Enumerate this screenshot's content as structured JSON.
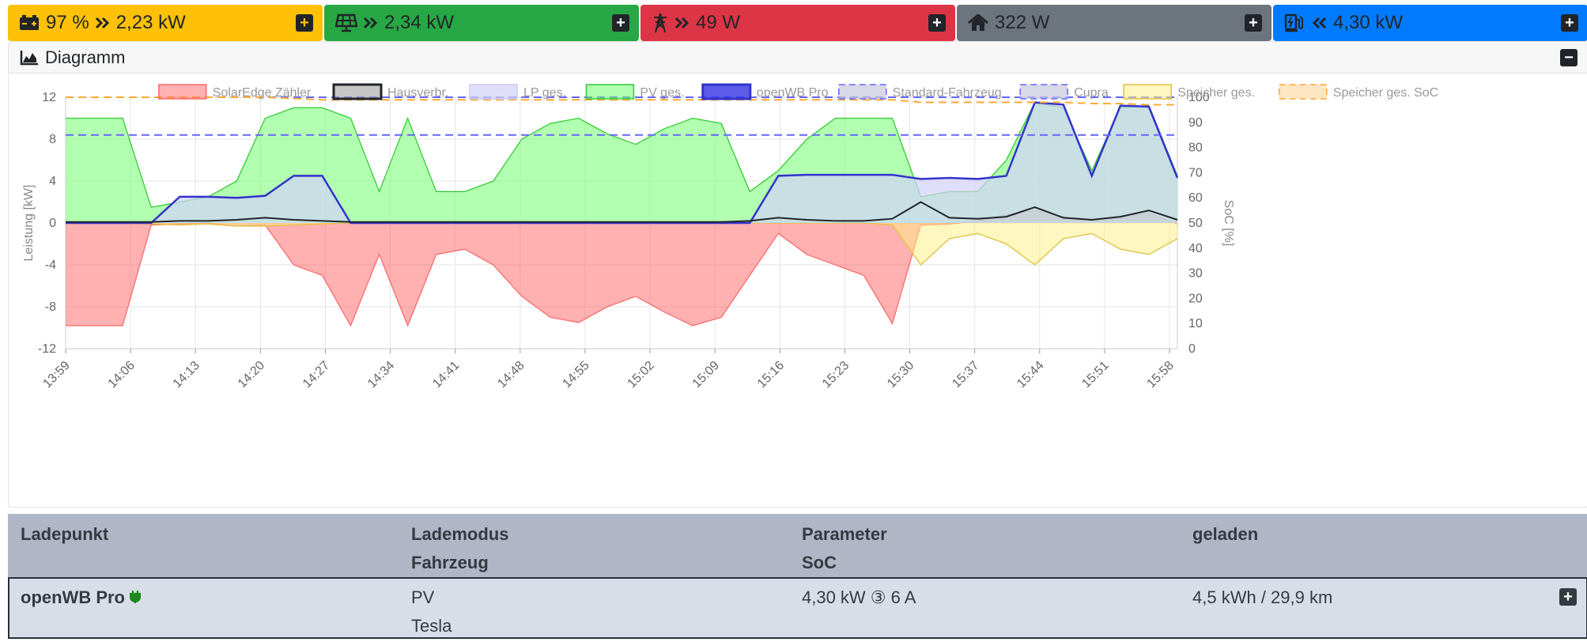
{
  "status": {
    "battery": {
      "soc": "97 %",
      "power": "2,23 kW",
      "icon": "battery-icon",
      "color": "#ffc107"
    },
    "pv": {
      "power": "2,34 kW",
      "icon": "solar-panel-icon",
      "color": "#28a745"
    },
    "grid": {
      "power": "49 W",
      "icon": "power-tower-icon",
      "color": "#dc3545"
    },
    "house": {
      "power": "322 W",
      "icon": "home-icon",
      "color": "#6c757d"
    },
    "chargepoints": {
      "power": "4,30 kW",
      "icon": "charging-station-icon",
      "color": "#007bff"
    }
  },
  "diagram": {
    "title": "Diagramm",
    "icon": "area-chart-icon"
  },
  "chart_data": {
    "type": "area",
    "title": "",
    "xlabel": "",
    "ylabel": "Leistung [kW]",
    "y2label": "SoC [%]",
    "ylim": [
      -12,
      12
    ],
    "y2lim": [
      0,
      100
    ],
    "yticks": [
      12,
      8,
      4,
      0,
      -4,
      -8,
      -12
    ],
    "y2ticks": [
      100,
      90,
      80,
      70,
      60,
      50,
      40,
      30,
      20,
      10,
      0
    ],
    "xticks": [
      "13:59",
      "14:06",
      "14:13",
      "14:20",
      "14:27",
      "14:34",
      "14:41",
      "14:48",
      "14:55",
      "15:02",
      "15:09",
      "15:16",
      "15:23",
      "15:30",
      "15:37",
      "15:44",
      "15:51",
      "15:58"
    ],
    "grid": true,
    "legend_position": "top",
    "x": [
      "13:59",
      "14:03",
      "14:07",
      "14:10",
      "14:13",
      "14:16",
      "14:19",
      "14:22",
      "14:24",
      "14:26",
      "14:30",
      "14:33",
      "14:36",
      "14:40",
      "14:44",
      "14:47",
      "14:50",
      "14:53",
      "14:56",
      "14:59",
      "15:02",
      "15:05",
      "15:08",
      "15:11",
      "15:14",
      "15:17",
      "15:20",
      "15:23",
      "15:26",
      "15:29",
      "15:31",
      "15:34",
      "15:37",
      "15:40",
      "15:43",
      "15:46",
      "15:49",
      "15:52",
      "15:55",
      "15:58"
    ],
    "series": [
      {
        "name": "SolarEdge Zähler",
        "kind": "area",
        "color": "#ff6b6b",
        "fill": "rgba(255,99,99,0.5)",
        "values": [
          -9.8,
          -9.8,
          -9.8,
          -0.2,
          -0.1,
          0,
          -0.3,
          -0.2,
          -4,
          -5,
          -9.8,
          -3,
          -9.8,
          -3,
          -2.5,
          -4,
          -7,
          -9,
          -9.5,
          -8,
          -7,
          -8.5,
          -9.8,
          -9,
          -5,
          -1,
          -3,
          -4,
          -5,
          -9.6,
          -0.2,
          -0.1,
          0.2,
          0.8,
          1.2,
          0.6,
          0.3,
          0.5,
          1,
          -0.1
        ]
      },
      {
        "name": "Hausverbr.",
        "kind": "line",
        "color": "#212529",
        "fill": "rgba(160,160,160,0.6)",
        "values": [
          0.1,
          0.1,
          0.1,
          0.1,
          0.2,
          0.2,
          0.3,
          0.5,
          0.3,
          0.2,
          0.1,
          0.1,
          0.1,
          0.1,
          0.1,
          0.1,
          0.1,
          0.1,
          0.1,
          0.1,
          0.1,
          0.1,
          0.1,
          0.1,
          0.2,
          0.5,
          0.3,
          0.2,
          0.2,
          0.4,
          2,
          0.5,
          0.4,
          0.6,
          1.5,
          0.5,
          0.3,
          0.6,
          1.2,
          0.3
        ]
      },
      {
        "name": "LP ges.",
        "kind": "area",
        "color": "#c9c9f0",
        "fill": "rgba(210,210,250,0.7)",
        "values": [
          0,
          0,
          0,
          0,
          2.5,
          2.5,
          2.4,
          2.6,
          4.5,
          4.5,
          0,
          0,
          0,
          0,
          0,
          0,
          0,
          0,
          0,
          0,
          0,
          0,
          0,
          0,
          0,
          4.5,
          4.6,
          4.6,
          4.6,
          4.6,
          4.2,
          4.3,
          4.2,
          4.5,
          11.5,
          11.3,
          4.5,
          11.2,
          11.1,
          4.3
        ]
      },
      {
        "name": "PV ges.",
        "kind": "area",
        "color": "#33cc33",
        "fill": "rgba(102,255,102,0.5)",
        "values": [
          10,
          10,
          10,
          1.5,
          2,
          2.5,
          4,
          10,
          11,
          11,
          10,
          3,
          10,
          3,
          3,
          4,
          8,
          9.5,
          10,
          8.5,
          7.5,
          9,
          10,
          9.5,
          3,
          5,
          8,
          10,
          10,
          10,
          2.5,
          3,
          3,
          6,
          11.5,
          11,
          5,
          11,
          11.2,
          4.5
        ]
      },
      {
        "name": "openWB Pro",
        "kind": "line",
        "color": "#3333cc",
        "fill": "rgba(51,51,230,0.8)",
        "values": [
          0,
          0,
          0,
          0,
          2.5,
          2.5,
          2.4,
          2.6,
          4.5,
          4.5,
          0,
          0,
          0,
          0,
          0,
          0,
          0,
          0,
          0,
          0,
          0,
          0,
          0,
          0,
          0,
          4.5,
          4.6,
          4.6,
          4.6,
          4.6,
          4.2,
          4.3,
          4.2,
          4.5,
          11.5,
          11.3,
          4.5,
          11.2,
          11.1,
          4.3
        ]
      },
      {
        "name": "Standard-Fahrzeug",
        "kind": "dash",
        "axis": "soc",
        "color": "#6666ff",
        "fill": "rgba(200,200,220,0.7)",
        "values": [
          85,
          85,
          85,
          85,
          85,
          85,
          85,
          85,
          85,
          85,
          85,
          85,
          85,
          85,
          85,
          85,
          85,
          85,
          85,
          85,
          85,
          85,
          85,
          85,
          85,
          85,
          85,
          85,
          85,
          85,
          85,
          85,
          85,
          85,
          85,
          85,
          85,
          85,
          85,
          85
        ]
      },
      {
        "name": "Cupra",
        "kind": "dash",
        "axis": "soc",
        "color": "#6666ff",
        "fill": "rgba(200,200,220,0.7)",
        "values": [
          100,
          100,
          100,
          100,
          100,
          100,
          100,
          100,
          100,
          100,
          100,
          100,
          100,
          100,
          100,
          100,
          100,
          100,
          100,
          100,
          100,
          100,
          100,
          100,
          100,
          100,
          100,
          100,
          100,
          100,
          100,
          100,
          100,
          100,
          100,
          100,
          100,
          100,
          100,
          100
        ]
      },
      {
        "name": "Speicher ges.",
        "kind": "area",
        "color": "#e0c040",
        "fill": "rgba(255,240,130,0.5)",
        "values": [
          0,
          0,
          0,
          -0.1,
          -0.2,
          -0.1,
          -0.3,
          -0.3,
          -0.2,
          -0.1,
          0,
          0,
          0,
          0,
          0,
          0,
          0,
          0,
          0,
          0,
          0,
          0,
          0,
          0,
          0,
          0,
          0,
          0,
          0,
          -0.2,
          -4,
          -1.5,
          -1,
          -2,
          -4,
          -1.5,
          -1,
          -2.5,
          -3,
          -1.5
        ]
      },
      {
        "name": "Speicher ges. SoC",
        "kind": "dash",
        "axis": "soc",
        "color": "#ffaa33",
        "fill": "rgba(255,220,170,0.7)",
        "values": [
          100,
          100,
          100,
          100,
          100,
          100,
          100,
          100,
          99.5,
          99,
          99,
          99,
          99,
          99,
          99,
          99,
          99,
          99,
          99,
          99,
          99,
          99,
          99,
          99,
          99,
          99,
          99,
          99,
          99,
          99,
          98,
          98,
          98,
          98,
          98,
          98,
          97.5,
          97.5,
          97,
          97
        ]
      }
    ]
  },
  "table": {
    "headers": {
      "col1": "Ladepunkt",
      "col2a": "Lademodus",
      "col2b": "Fahrzeug",
      "col3a": "Parameter",
      "col3b": "SoC",
      "col4": "geladen"
    },
    "rows": [
      {
        "name": "openWB Pro",
        "mode": "PV",
        "vehicle": "Tesla",
        "param": "4,30 kW ③ 6 A",
        "charged": "4,5 kWh / 29,9 km"
      }
    ]
  }
}
